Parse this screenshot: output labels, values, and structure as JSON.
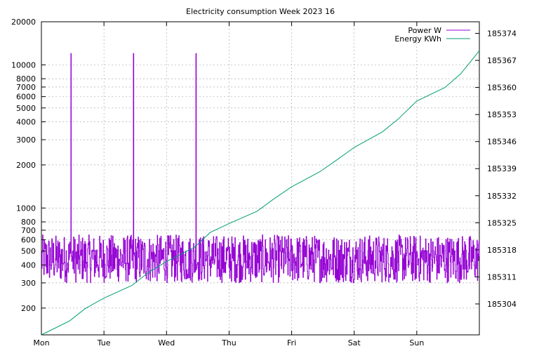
{
  "chart_data": {
    "type": "line",
    "title": "Electricity consumption Week 2023 16",
    "xlabel": "",
    "ylabel_left": "",
    "ylabel_right": "",
    "grid": true,
    "legend_position": "top-right",
    "x_tick_labels": [
      "Mon",
      "Tue",
      "Wed",
      "Thu",
      "Fri",
      "Sat",
      "Sun"
    ],
    "x_range_days": [
      0,
      7
    ],
    "y_left": {
      "scale": "log",
      "range": [
        130,
        20000
      ],
      "tick_labels": [
        "20000",
        "10000",
        "8000",
        "7000",
        "6000",
        "5000",
        "4000",
        "3000",
        "2000",
        "1000",
        "800",
        "700",
        "600",
        "500",
        "400",
        "300",
        "200"
      ],
      "tick_values": [
        20000,
        10000,
        8000,
        7000,
        6000,
        5000,
        4000,
        3000,
        2000,
        1000,
        800,
        700,
        600,
        500,
        400,
        300,
        200
      ]
    },
    "y_right": {
      "scale": "linear",
      "range": [
        185296,
        185377
      ],
      "tick_labels": [
        "185374",
        "185367",
        "185360",
        "185353",
        "185346",
        "185339",
        "185332",
        "185325",
        "185318",
        "185311",
        "185304"
      ],
      "tick_values": [
        185374,
        185367,
        185360,
        185353,
        185346,
        185339,
        185332,
        185325,
        185318,
        185311,
        185304
      ]
    },
    "series": [
      {
        "name": "Power W",
        "axis": "left",
        "color": "#9400d3",
        "baseline_min": 300,
        "baseline_max": 650,
        "spikes": [
          {
            "day": 0.47,
            "value": 12000
          },
          {
            "day": 1.47,
            "value": 12000
          },
          {
            "day": 2.47,
            "value": 12000
          }
        ]
      },
      {
        "name": "Energy KWh",
        "axis": "right",
        "color": "#009e73",
        "points": [
          {
            "day": 0.0,
            "value": 185296.0
          },
          {
            "day": 0.45,
            "value": 185299.6
          },
          {
            "day": 0.7,
            "value": 185302.8
          },
          {
            "day": 1.0,
            "value": 185305.5
          },
          {
            "day": 1.45,
            "value": 185308.8
          },
          {
            "day": 1.7,
            "value": 185312.0
          },
          {
            "day": 2.0,
            "value": 185315.0
          },
          {
            "day": 2.45,
            "value": 185318.7
          },
          {
            "day": 2.7,
            "value": 185322.5
          },
          {
            "day": 3.0,
            "value": 185324.8
          },
          {
            "day": 3.45,
            "value": 185328.0
          },
          {
            "day": 3.7,
            "value": 185331.0
          },
          {
            "day": 4.0,
            "value": 185334.3
          },
          {
            "day": 4.45,
            "value": 185338.2
          },
          {
            "day": 4.7,
            "value": 185341.0
          },
          {
            "day": 5.0,
            "value": 185344.5
          },
          {
            "day": 5.45,
            "value": 185348.5
          },
          {
            "day": 5.7,
            "value": 185351.8
          },
          {
            "day": 6.0,
            "value": 185356.5
          },
          {
            "day": 6.45,
            "value": 185360.0
          },
          {
            "day": 6.7,
            "value": 185363.5
          },
          {
            "day": 7.0,
            "value": 185369.5
          }
        ]
      }
    ]
  }
}
